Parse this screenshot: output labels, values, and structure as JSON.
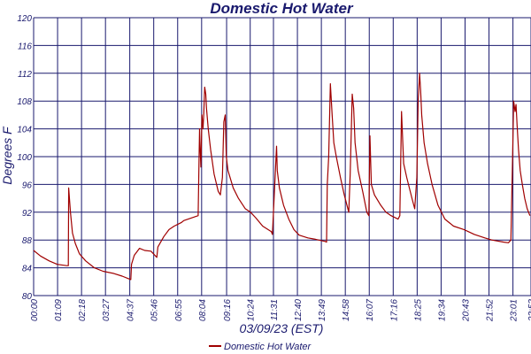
{
  "colors": {
    "grid": "#1a1a6e",
    "text": "#1a1a6e",
    "series": "#a00000",
    "plot_bg": "#ffffff"
  },
  "chart_data": {
    "type": "line",
    "title": "Domestic Hot Water",
    "xlabel": "03/09/23 (EST)",
    "ylabel": "Degrees F",
    "ylim": [
      80,
      120
    ],
    "y_ticks": [
      80,
      84,
      88,
      92,
      96,
      100,
      104,
      108,
      112,
      116,
      120
    ],
    "y_tick_labels": [
      "80",
      "84",
      "88",
      "92",
      "96",
      "100",
      "104",
      "108",
      "112",
      "116",
      "120"
    ],
    "x_tick_labels": [
      "00:00",
      "01:09",
      "02:18",
      "03:27",
      "04:37",
      "05:46",
      "06:55",
      "08:04",
      "09:16",
      "10:24",
      "11:31",
      "12:40",
      "13:49",
      "14:58",
      "16:07",
      "17:16",
      "18:25",
      "19:34",
      "20:43",
      "21:52",
      "23:01",
      "23:53"
    ],
    "x_tick_minutes": [
      0,
      69,
      138,
      207,
      277,
      346,
      415,
      484,
      556,
      624,
      691,
      760,
      829,
      898,
      967,
      1036,
      1105,
      1174,
      1243,
      1312,
      1381,
      1433
    ],
    "x_range_minutes": [
      0,
      1433
    ],
    "grid": true,
    "legend_position": "bottom",
    "series": [
      {
        "name": "Domestic Hot Water",
        "points": [
          [
            0,
            86.5
          ],
          [
            20,
            85.7
          ],
          [
            45,
            85.0
          ],
          [
            68,
            84.5
          ],
          [
            95,
            84.3
          ],
          [
            100,
            84.3
          ],
          [
            101,
            95.5
          ],
          [
            106,
            92
          ],
          [
            112,
            89
          ],
          [
            120,
            87.5
          ],
          [
            132,
            86
          ],
          [
            150,
            85
          ],
          [
            175,
            84
          ],
          [
            200,
            83.5
          ],
          [
            230,
            83.2
          ],
          [
            255,
            82.8
          ],
          [
            275,
            82.4
          ],
          [
            280,
            82.3
          ],
          [
            282,
            84.5
          ],
          [
            290,
            85.8
          ],
          [
            305,
            86.8
          ],
          [
            320,
            86.5
          ],
          [
            338,
            86.4
          ],
          [
            355,
            85.5
          ],
          [
            358,
            87
          ],
          [
            375,
            88.5
          ],
          [
            390,
            89.5
          ],
          [
            405,
            90
          ],
          [
            425,
            90.5
          ],
          [
            433,
            90.8
          ],
          [
            474,
            91.5
          ],
          [
            476,
            98
          ],
          [
            478,
            104
          ],
          [
            480,
            101
          ],
          [
            482,
            98.5
          ],
          [
            485,
            106
          ],
          [
            488,
            104
          ],
          [
            490,
            106
          ],
          [
            493,
            110
          ],
          [
            496,
            109
          ],
          [
            498,
            107
          ],
          [
            503,
            104
          ],
          [
            510,
            101
          ],
          [
            520,
            97.5
          ],
          [
            532,
            95
          ],
          [
            538,
            94.5
          ],
          [
            544,
            97
          ],
          [
            548,
            105
          ],
          [
            552,
            106
          ],
          [
            555,
            100
          ],
          [
            560,
            98
          ],
          [
            575,
            95.5
          ],
          [
            590,
            94
          ],
          [
            610,
            92.5
          ],
          [
            625,
            92
          ],
          [
            640,
            91.2
          ],
          [
            660,
            90
          ],
          [
            685,
            89.2
          ],
          [
            688,
            88.8
          ],
          [
            700,
            101.5
          ],
          [
            702,
            98
          ],
          [
            708,
            95.5
          ],
          [
            720,
            93
          ],
          [
            735,
            91
          ],
          [
            750,
            89.5
          ],
          [
            765,
            88.7
          ],
          [
            790,
            88.3
          ],
          [
            812,
            88.1
          ],
          [
            840,
            87.8
          ],
          [
            844,
            87.7
          ],
          [
            846,
            96
          ],
          [
            850,
            100
          ],
          [
            855,
            110.5
          ],
          [
            860,
            106
          ],
          [
            865,
            102
          ],
          [
            872,
            100
          ],
          [
            884,
            97
          ],
          [
            895,
            94.5
          ],
          [
            908,
            92
          ],
          [
            912,
            97.5
          ],
          [
            918,
            109
          ],
          [
            922,
            107
          ],
          [
            926,
            102
          ],
          [
            935,
            98
          ],
          [
            948,
            95
          ],
          [
            960,
            92
          ],
          [
            966,
            91.5
          ],
          [
            969,
            103
          ],
          [
            973,
            96
          ],
          [
            982,
            94.5
          ],
          [
            1000,
            93
          ],
          [
            1015,
            92
          ],
          [
            1030,
            91.5
          ],
          [
            1050,
            91
          ],
          [
            1055,
            91.5
          ],
          [
            1060,
            106.5
          ],
          [
            1066,
            99
          ],
          [
            1075,
            97
          ],
          [
            1090,
            94
          ],
          [
            1098,
            92.5
          ],
          [
            1104,
            97
          ],
          [
            1108,
            108
          ],
          [
            1112,
            112
          ],
          [
            1115,
            109.5
          ],
          [
            1118,
            106
          ],
          [
            1125,
            102
          ],
          [
            1135,
            99
          ],
          [
            1148,
            96
          ],
          [
            1165,
            93
          ],
          [
            1185,
            91
          ],
          [
            1210,
            90
          ],
          [
            1240,
            89.5
          ],
          [
            1270,
            88.8
          ],
          [
            1300,
            88.3
          ],
          [
            1320,
            88
          ],
          [
            1355,
            87.7
          ],
          [
            1368,
            87.6
          ],
          [
            1375,
            88
          ],
          [
            1380,
            100
          ],
          [
            1383,
            108
          ],
          [
            1387,
            106.5
          ],
          [
            1390,
            107.5
          ],
          [
            1393,
            104.5
          ],
          [
            1397,
            101
          ],
          [
            1402,
            98
          ],
          [
            1405,
            97
          ],
          [
            1408,
            96
          ],
          [
            1415,
            94
          ],
          [
            1422,
            92.5
          ],
          [
            1430,
            91.5
          ]
        ]
      }
    ]
  }
}
